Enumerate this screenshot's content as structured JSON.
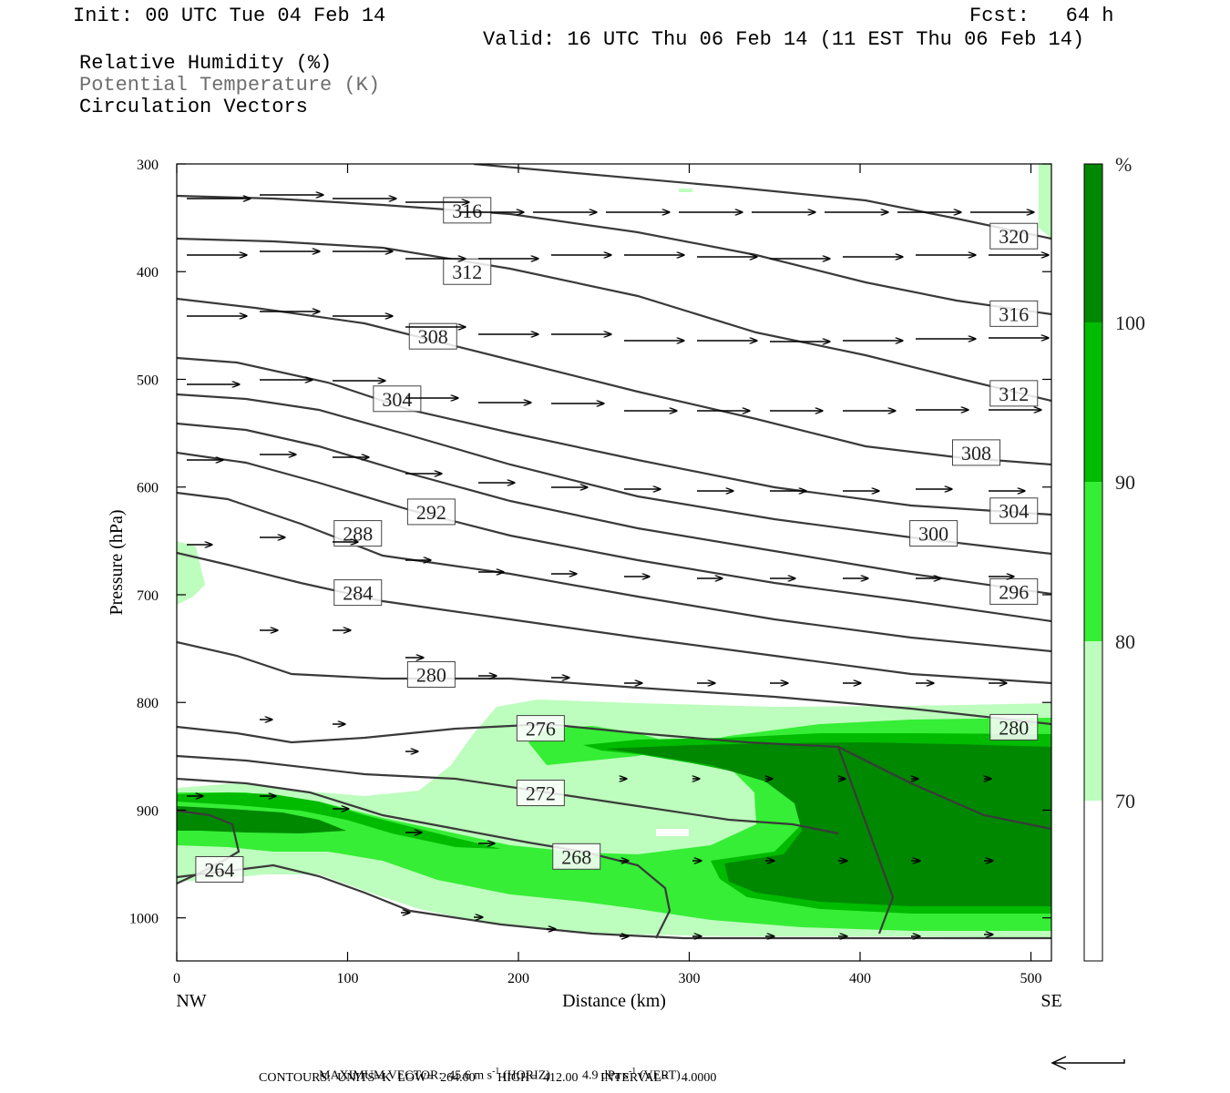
{
  "header": {
    "init": "Init: 00 UTC Tue 04 Feb 14",
    "fcst": "Fcst:   64 h",
    "valid": "Valid: 16 UTC Thu 06 Feb 14 (11 EST Thu 06 Feb 14)",
    "fields": [
      "Relative Humidity (%)",
      "Potential Temperature (K)",
      "Circulation Vectors"
    ]
  },
  "footer": {
    "max_vector_prefix": "MAXIMUM VECTOR:  45.6 m s",
    "max_vector_horiz": "(HORIZ)",
    "max_vector_vert_prefix": "4.9 dPa s",
    "max_vector_vert": "(VERT)",
    "superscript": "-1",
    "contours": "CONTOURS:  UNITS=K  LOW=  264.00       HIGH=  412.00       INTERVAL=    4.0000"
  },
  "colors": {
    "rh70": "#bdfdbd",
    "rh80": "#35ee35",
    "rh90": "#00bb00",
    "rh100": "#008800",
    "contour": "#3a3a3a",
    "vector": "#000000"
  },
  "chart_data": {
    "type": "cross-section",
    "xlabel": "Distance (km)",
    "ylabel": "Pressure (hPa)",
    "xlim": [
      0,
      512
    ],
    "ylim": [
      300,
      1040
    ],
    "x_ticks": [
      "0",
      "100",
      "200",
      "300",
      "400",
      "500"
    ],
    "y_ticks": [
      "300",
      "400",
      "500",
      "600",
      "700",
      "800",
      "900",
      "1000"
    ],
    "x_end_labels": {
      "left": "NW",
      "right": "SE"
    },
    "colorbar": {
      "unit": "%",
      "levels": [
        "70",
        "80",
        "90",
        "100"
      ],
      "colors": [
        "#ffffff",
        "#bdfdbd",
        "#35ee35",
        "#00bb00",
        "#008800"
      ]
    },
    "theta_contour_labels": [
      {
        "value": "316",
        "x": 170,
        "p": 343
      },
      {
        "value": "320",
        "x": 490,
        "p": 367
      },
      {
        "value": "312",
        "x": 170,
        "p": 400
      },
      {
        "value": "316",
        "x": 490,
        "p": 439
      },
      {
        "value": "308",
        "x": 150,
        "p": 460
      },
      {
        "value": "312",
        "x": 490,
        "p": 513
      },
      {
        "value": "304",
        "x": 129,
        "p": 518
      },
      {
        "value": "308",
        "x": 468,
        "p": 568
      },
      {
        "value": "292",
        "x": 149,
        "p": 623
      },
      {
        "value": "304",
        "x": 490,
        "p": 622
      },
      {
        "value": "288",
        "x": 106,
        "p": 643
      },
      {
        "value": "300",
        "x": 443,
        "p": 643
      },
      {
        "value": "284",
        "x": 106,
        "p": 698
      },
      {
        "value": "296",
        "x": 490,
        "p": 697
      },
      {
        "value": "280",
        "x": 149,
        "p": 774
      },
      {
        "value": "276",
        "x": 213,
        "p": 824
      },
      {
        "value": "280",
        "x": 490,
        "p": 823
      },
      {
        "value": "272",
        "x": 213,
        "p": 884
      },
      {
        "value": "268",
        "x": 234,
        "p": 943
      },
      {
        "value": "264",
        "x": 25,
        "p": 955
      }
    ]
  }
}
